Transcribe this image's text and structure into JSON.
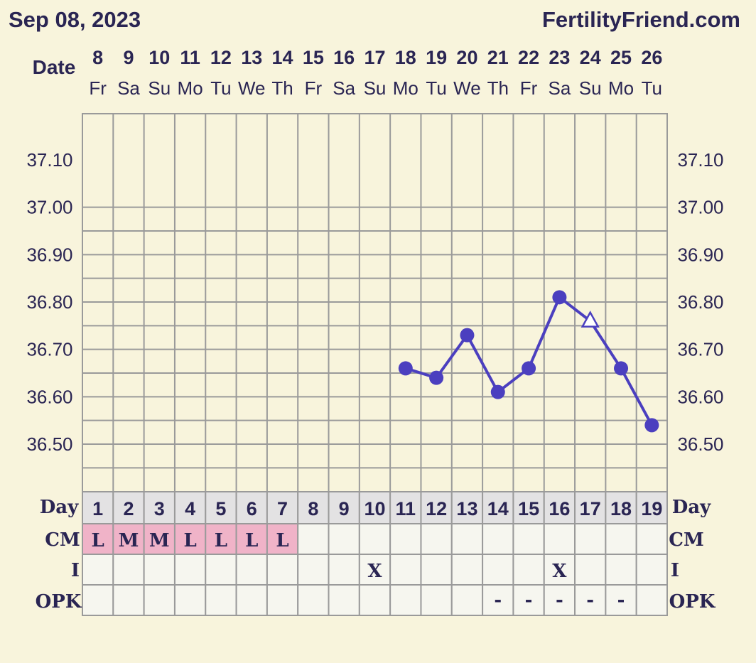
{
  "header": {
    "date_text": "Sep 08, 2023",
    "site_text": "FertilityFriend.com"
  },
  "colors": {
    "background": "#f8f4dc",
    "grid": "#9a9a9a",
    "line": "#4b3fbf",
    "text": "#2a2553",
    "cm_fill": "#f0b3c8",
    "day_row_fill": "#e3e2e3",
    "cell_fill": "#f6f6ef"
  },
  "chart_data": {
    "type": "line",
    "title": "",
    "xlabel": "Date",
    "ylabel": "",
    "ylim": [
      36.42,
      37.2
    ],
    "y_ticks": [
      "37.10",
      "37.00",
      "36.90",
      "36.80",
      "36.70",
      "36.60",
      "36.50"
    ],
    "y_tick_values": [
      37.1,
      37.0,
      36.9,
      36.8,
      36.7,
      36.6,
      36.5
    ],
    "dates": [
      "8",
      "9",
      "10",
      "11",
      "12",
      "13",
      "14",
      "15",
      "16",
      "17",
      "18",
      "19",
      "20",
      "21",
      "22",
      "23",
      "24",
      "25",
      "26"
    ],
    "weekdays": [
      "Fr",
      "Sa",
      "Su",
      "Mo",
      "Tu",
      "We",
      "Th",
      "Fr",
      "Sa",
      "Su",
      "Mo",
      "Tu",
      "We",
      "Th",
      "Fr",
      "Sa",
      "Su",
      "Mo",
      "Tu"
    ],
    "series": [
      {
        "values": [
          null,
          null,
          null,
          null,
          null,
          null,
          null,
          null,
          null,
          null,
          36.66,
          36.64,
          36.73,
          36.61,
          36.66,
          36.81,
          36.76,
          36.66,
          36.54
        ],
        "markers": [
          "",
          "",
          "",
          "",
          "",
          "",
          "",
          "",
          "",
          "",
          "circle",
          "circle",
          "circle",
          "circle",
          "circle",
          "circle",
          "triangle",
          "circle",
          "circle"
        ]
      }
    ],
    "grid": true
  },
  "rows": {
    "day_label": "Day",
    "cycle_days": [
      "1",
      "2",
      "3",
      "4",
      "5",
      "6",
      "7",
      "8",
      "9",
      "10",
      "11",
      "12",
      "13",
      "14",
      "15",
      "16",
      "17",
      "18",
      "19"
    ],
    "cm_label": "CM",
    "cm_values": [
      "L",
      "M",
      "M",
      "L",
      "L",
      "L",
      "L",
      "",
      "",
      "",
      "",
      "",
      "",
      "",
      "",
      "",
      "",
      "",
      ""
    ],
    "i_label": "I",
    "i_values": [
      "",
      "",
      "",
      "",
      "",
      "",
      "",
      "",
      "",
      "X",
      "",
      "",
      "",
      "",
      "",
      "X",
      "",
      "",
      ""
    ],
    "opk_label": "OPK",
    "opk_values": [
      "",
      "",
      "",
      "",
      "",
      "",
      "",
      "",
      "",
      "",
      "",
      "",
      "",
      "-",
      "-",
      "-",
      "-",
      "-",
      ""
    ]
  }
}
